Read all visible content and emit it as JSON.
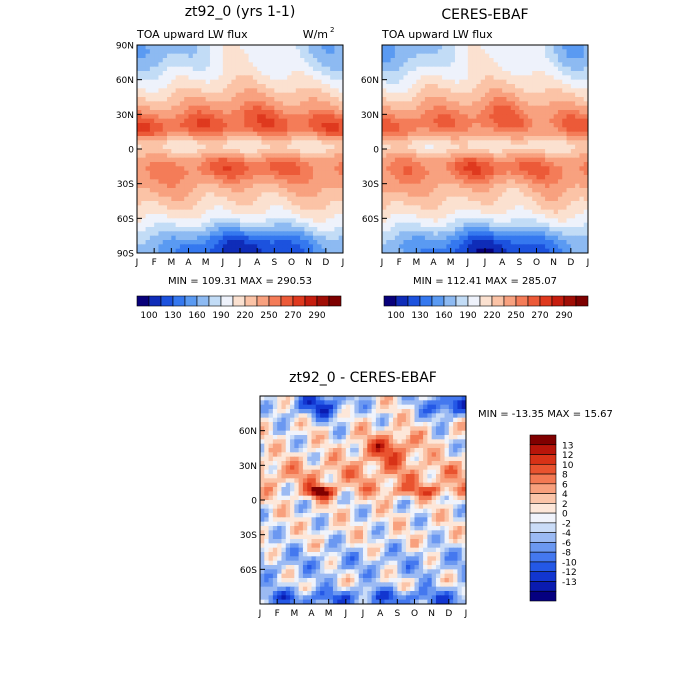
{
  "chart_data": [
    {
      "type": "heatmap",
      "title": "zt92_0 (yrs 1-1)",
      "subtitle_left": "TOA upward LW flux",
      "units": "W/m",
      "units_superscript": "2",
      "stats": "MIN = 109.31  MAX = 290.53",
      "x_ticks": [
        "J",
        "F",
        "M",
        "A",
        "M",
        "J",
        "J",
        "A",
        "S",
        "O",
        "N",
        "D",
        "J"
      ],
      "y_ticks": [
        "90N",
        "60N",
        "30N",
        "0",
        "30S",
        "60S",
        "90S"
      ],
      "ylim": [
        -90,
        90
      ],
      "colorbar_labels": [
        "100",
        "130",
        "160",
        "190",
        "220",
        "250",
        "270",
        "290"
      ],
      "features": [
        {
          "kind": "max",
          "month": 2.6,
          "lat": 17,
          "value": 290.53
        },
        {
          "kind": "min",
          "month": 7.0,
          "lat": -82,
          "value": 109.31
        }
      ]
    },
    {
      "type": "heatmap",
      "title": "CERES-EBAF",
      "subtitle_left": "TOA upward LW flux",
      "stats": "MIN = 112.41  MAX = 285.07",
      "x_ticks": [
        "J",
        "F",
        "M",
        "A",
        "M",
        "J",
        "J",
        "A",
        "S",
        "O",
        "N",
        "D",
        "J"
      ],
      "y_ticks": [
        "60N",
        "30N",
        "0",
        "30S",
        "60S"
      ],
      "ylim": [
        -90,
        90
      ],
      "colorbar_labels": [
        "100",
        "130",
        "160",
        "190",
        "220",
        "250",
        "270",
        "290"
      ],
      "features": [
        {
          "kind": "max",
          "month": 7.5,
          "lat": -15,
          "value": 285.07
        },
        {
          "kind": "min",
          "month": 7.0,
          "lat": -82,
          "value": 112.41
        }
      ]
    },
    {
      "type": "heatmap",
      "title": "zt92_0 - CERES-EBAF",
      "stats": "MIN = -13.35 MAX =  15.67",
      "x_ticks": [
        "J",
        "F",
        "M",
        "A",
        "M",
        "J",
        "J",
        "A",
        "S",
        "O",
        "N",
        "D",
        "J"
      ],
      "y_ticks": [
        "60N",
        "30N",
        "0",
        "30S",
        "60S"
      ],
      "ylim": [
        -90,
        90
      ],
      "colorbar_labels": [
        "13",
        "12",
        "10",
        "8",
        "6",
        "4",
        "2",
        "0",
        "-2",
        "-4",
        "-6",
        "-8",
        "-10",
        "-12",
        "-13"
      ],
      "features": [
        {
          "kind": "max",
          "month": 3.5,
          "lat": 8,
          "value": 15.67
        },
        {
          "kind": "min",
          "month": 11.0,
          "lat": 80,
          "value": -13.35
        }
      ]
    }
  ],
  "palette": {
    "flux": [
      "#08007a",
      "#0f2cb8",
      "#1c52de",
      "#3578ef",
      "#5a9af2",
      "#8dbaf2",
      "#c2dcf6",
      "#eef2fb",
      "#fbe1d0",
      "#fbc3a6",
      "#f8a17f",
      "#f47c58",
      "#ec5a38",
      "#df391e",
      "#c61d0e",
      "#a00d05",
      "#7d0000"
    ],
    "diff": [
      "#050080",
      "#0a1bb0",
      "#1236d0",
      "#2458e6",
      "#4478ef",
      "#6b98f1",
      "#9bbaf3",
      "#cadcf7",
      "#f0f3fb",
      "#fde7d9",
      "#fbc5a9",
      "#f8a07d",
      "#f37953",
      "#e9532f",
      "#d83217",
      "#b8150a",
      "#800000"
    ]
  }
}
